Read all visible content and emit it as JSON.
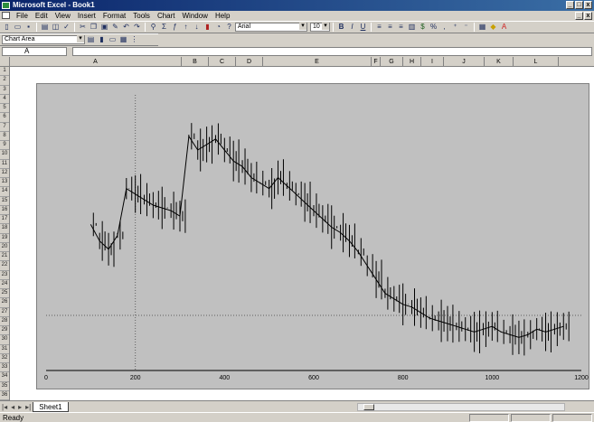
{
  "window": {
    "title": "Microsoft Excel - Book1",
    "min_label": "_",
    "close_label": "x"
  },
  "menu": {
    "items": [
      "File",
      "Edit",
      "View",
      "Insert",
      "Format",
      "Tools",
      "Chart",
      "Window",
      "Help"
    ]
  },
  "toolbar": {
    "font_name": "Arial",
    "font_size": "10"
  },
  "chart_toolbar": {
    "label": "Chart Area"
  },
  "formula_bar": {
    "name_box": "A"
  },
  "columns": [
    "A",
    "B",
    "C",
    "D",
    "E",
    "F",
    "G",
    "H",
    "I",
    "J",
    "K",
    "L"
  ],
  "rows": [
    "1",
    "2",
    "3",
    "4",
    "5",
    "6",
    "7",
    "8",
    "9",
    "10",
    "11",
    "12",
    "13",
    "14",
    "15",
    "16",
    "17",
    "18",
    "19",
    "20",
    "21",
    "22",
    "23",
    "24",
    "25",
    "26",
    "27",
    "28",
    "29",
    "30",
    "31",
    "32",
    "33",
    "34",
    "35",
    "36"
  ],
  "sheet_tabs": {
    "active": "Sheet1"
  },
  "status": {
    "text": "Ready"
  },
  "chart_data": {
    "type": "line",
    "title": "",
    "xlabel": "",
    "ylabel": "",
    "x_tick_labels": [
      "0",
      "200",
      "400",
      "600",
      "800",
      "1000",
      "1200"
    ],
    "xlim": [
      0,
      1200
    ],
    "ylim": [
      0,
      1
    ],
    "grid": true,
    "series": [
      {
        "values": [
          [
            100,
            0.53
          ],
          [
            120,
            0.47
          ],
          [
            140,
            0.44
          ],
          [
            160,
            0.49
          ],
          [
            180,
            0.66
          ],
          [
            200,
            0.64
          ],
          [
            220,
            0.62
          ],
          [
            240,
            0.6
          ],
          [
            260,
            0.59
          ],
          [
            280,
            0.58
          ],
          [
            300,
            0.56
          ],
          [
            320,
            0.85
          ],
          [
            340,
            0.8
          ],
          [
            360,
            0.82
          ],
          [
            380,
            0.84
          ],
          [
            400,
            0.8
          ],
          [
            420,
            0.76
          ],
          [
            440,
            0.74
          ],
          [
            460,
            0.7
          ],
          [
            480,
            0.68
          ],
          [
            500,
            0.66
          ],
          [
            520,
            0.7
          ],
          [
            540,
            0.67
          ],
          [
            560,
            0.64
          ],
          [
            580,
            0.61
          ],
          [
            600,
            0.58
          ],
          [
            620,
            0.55
          ],
          [
            640,
            0.52
          ],
          [
            660,
            0.5
          ],
          [
            680,
            0.47
          ],
          [
            700,
            0.43
          ],
          [
            720,
            0.38
          ],
          [
            740,
            0.33
          ],
          [
            760,
            0.28
          ],
          [
            780,
            0.26
          ],
          [
            800,
            0.24
          ],
          [
            820,
            0.23
          ],
          [
            840,
            0.21
          ],
          [
            860,
            0.19
          ],
          [
            880,
            0.18
          ],
          [
            900,
            0.17
          ],
          [
            920,
            0.16
          ],
          [
            940,
            0.15
          ],
          [
            960,
            0.14
          ],
          [
            980,
            0.15
          ],
          [
            1000,
            0.16
          ],
          [
            1020,
            0.14
          ],
          [
            1040,
            0.13
          ],
          [
            1060,
            0.12
          ],
          [
            1080,
            0.13
          ],
          [
            1100,
            0.15
          ],
          [
            1120,
            0.14
          ],
          [
            1140,
            0.15
          ],
          [
            1160,
            0.16
          ]
        ]
      }
    ]
  }
}
